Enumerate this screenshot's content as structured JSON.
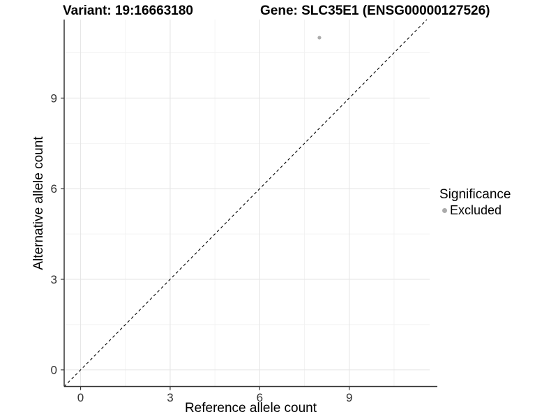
{
  "chart_data": {
    "type": "scatter",
    "title_left": "Variant: 19:16663180",
    "title_right": "Gene: SLC35E1 (ENSG00000127526)",
    "xlabel": "Reference allele count",
    "ylabel": "Alternative allele count",
    "xlim": [
      -0.55,
      11.95
    ],
    "ylim": [
      -0.55,
      11.6
    ],
    "x_major_ticks": [
      0,
      3,
      6,
      9
    ],
    "y_major_ticks": [
      0,
      3,
      6,
      9
    ],
    "x_minor_ticks": [
      1.5,
      4.5,
      7.5,
      10.5
    ],
    "y_minor_ticks": [
      1.5,
      4.5,
      7.5,
      10.5
    ],
    "grid": true,
    "identity_line": {
      "equation": "y = x",
      "style": "dashed",
      "color": "#000000"
    },
    "series": [
      {
        "name": "Excluded",
        "color": "#ababab",
        "points": [
          {
            "x": 8,
            "y": 11
          }
        ]
      }
    ],
    "legend": {
      "title": "Significance",
      "position": "right",
      "items": [
        {
          "label": "Excluded",
          "color": "#ababab"
        }
      ]
    },
    "colors": {
      "grid_major": "#e6e6e6",
      "grid_minor": "#f2f2f2",
      "axis_line": "#333333",
      "tick_label": "#333333"
    }
  }
}
